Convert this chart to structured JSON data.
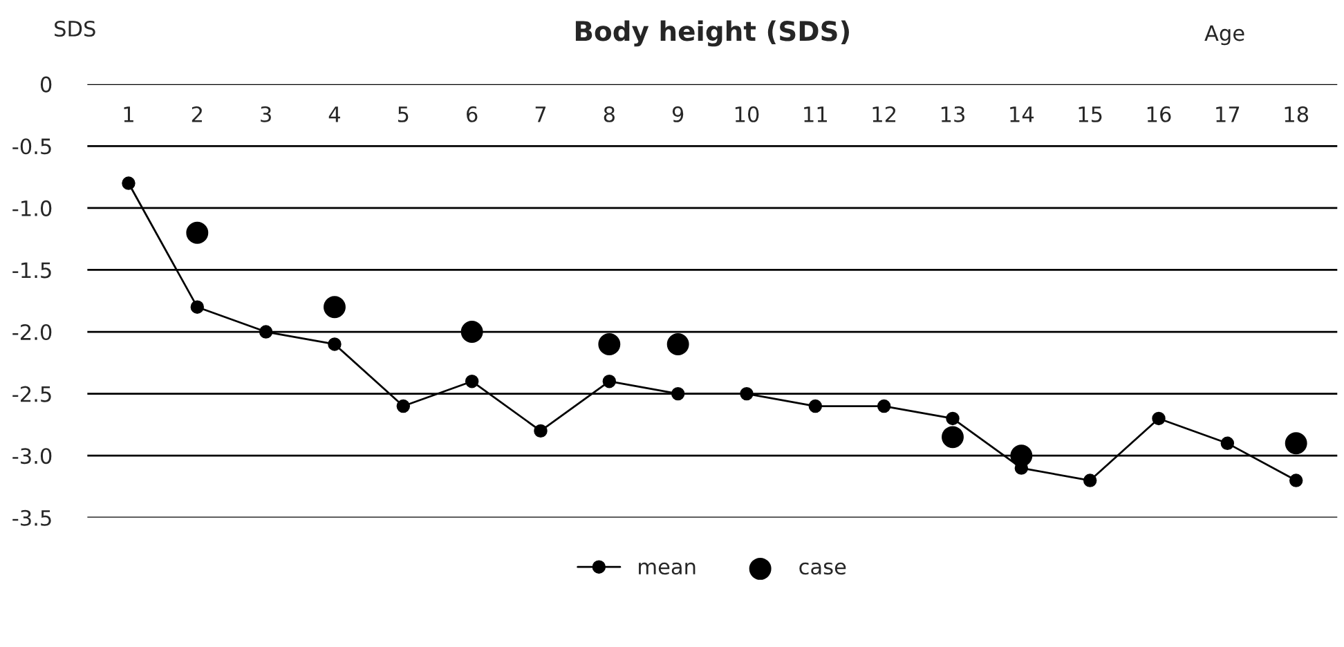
{
  "chart_data": {
    "type": "line",
    "title": "Body height (SDS)",
    "xlabel": "Age",
    "ylabel": "SDS",
    "categories": [
      "1",
      "2",
      "3",
      "4",
      "5",
      "6",
      "7",
      "8",
      "9",
      "10",
      "11",
      "12",
      "13",
      "14",
      "15",
      "16",
      "17",
      "18"
    ],
    "series": [
      {
        "name": "mean",
        "color": "#000000",
        "marker": "circle",
        "values": [
          -0.8,
          -1.8,
          -2.0,
          -2.1,
          -2.6,
          -2.4,
          -2.8,
          -2.4,
          -2.5,
          -2.5,
          -2.6,
          -2.6,
          -2.7,
          -3.1,
          -3.2,
          -2.7,
          -2.9,
          -3.2
        ]
      },
      {
        "name": "case",
        "type": "scatter",
        "color": "#000000",
        "marker": "circle",
        "values": [
          null,
          -1.2,
          null,
          -1.8,
          null,
          -2.0,
          null,
          -2.1,
          -2.1,
          null,
          null,
          null,
          -2.85,
          -3.0,
          null,
          null,
          null,
          -2.9
        ]
      }
    ],
    "ylim": [
      -3.5,
      0
    ],
    "yticks": [
      0,
      {
        "value": -0.5,
        "label": "-0.5"
      },
      {
        "value": -1.0,
        "label": "-1.0"
      },
      {
        "value": -1.5,
        "label": "-1.5"
      },
      {
        "value": -2.0,
        "label": "-2.0"
      },
      {
        "value": -2.5,
        "label": "-2.5"
      },
      {
        "value": -3.0,
        "label": "-3.0"
      },
      {
        "value": -3.5,
        "label": "-3.5"
      }
    ],
    "grid": "y",
    "legend": "bottom"
  }
}
